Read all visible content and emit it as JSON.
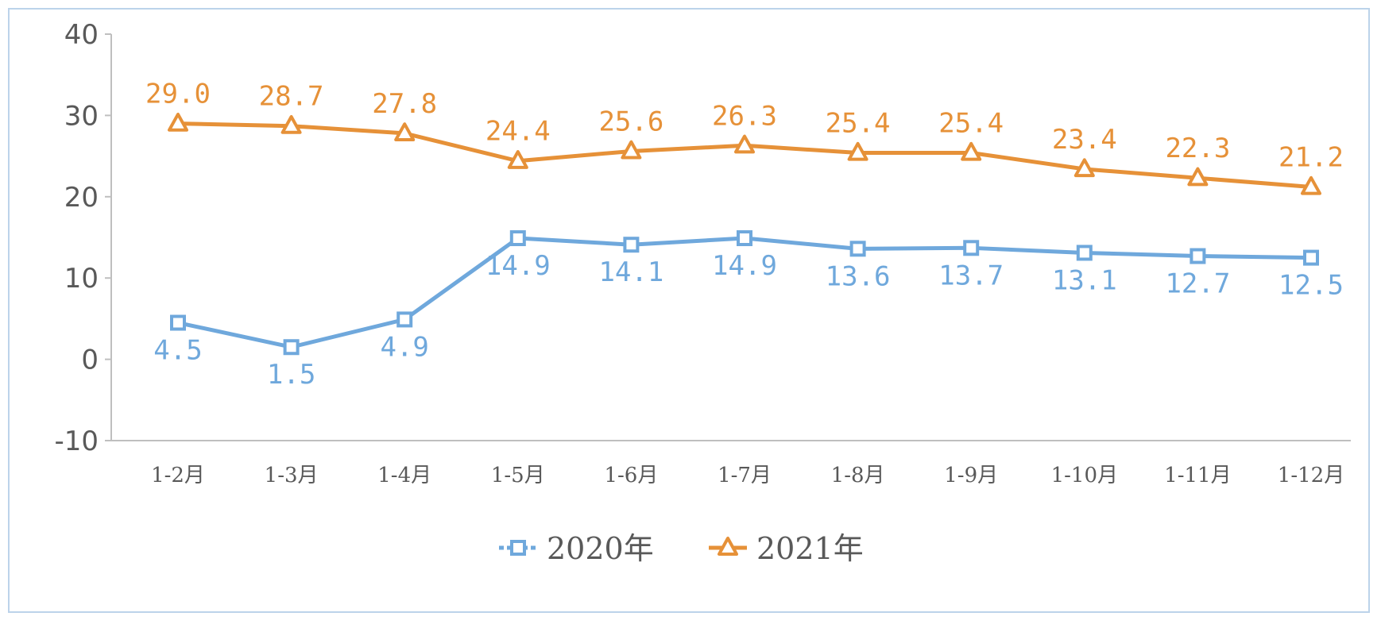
{
  "chart_data": {
    "type": "line",
    "title": "",
    "xlabel": "",
    "ylabel": "",
    "categories": [
      "1-2月",
      "1-3月",
      "1-4月",
      "1-5月",
      "1-6月",
      "1-7月",
      "1-8月",
      "1-9月",
      "1-10月",
      "1-11月",
      "1-12月"
    ],
    "yticks": [
      "40",
      "30",
      "20",
      "10",
      "0",
      "-10"
    ],
    "ylim": [
      -10,
      40
    ],
    "grid": false,
    "legend_position": "bottom",
    "series": [
      {
        "name": "2020年",
        "color": "#6fa8dc",
        "marker": "square",
        "values": [
          4.5,
          1.5,
          4.9,
          14.9,
          14.1,
          14.9,
          13.6,
          13.7,
          13.1,
          12.7,
          12.5
        ],
        "labels": [
          "4.5",
          "1.5",
          "4.9",
          "14.9",
          "14.1",
          "14.9",
          "13.6",
          "13.7",
          "13.1",
          "12.7",
          "12.5"
        ]
      },
      {
        "name": "2021年",
        "color": "#e69138",
        "marker": "triangle",
        "values": [
          29.0,
          28.7,
          27.8,
          24.4,
          25.6,
          26.3,
          25.4,
          25.4,
          23.4,
          22.3,
          21.2
        ],
        "labels": [
          "29.0",
          "28.7",
          "27.8",
          "24.4",
          "25.6",
          "26.3",
          "25.4",
          "25.4",
          "23.4",
          "22.3",
          "21.2"
        ]
      }
    ]
  }
}
